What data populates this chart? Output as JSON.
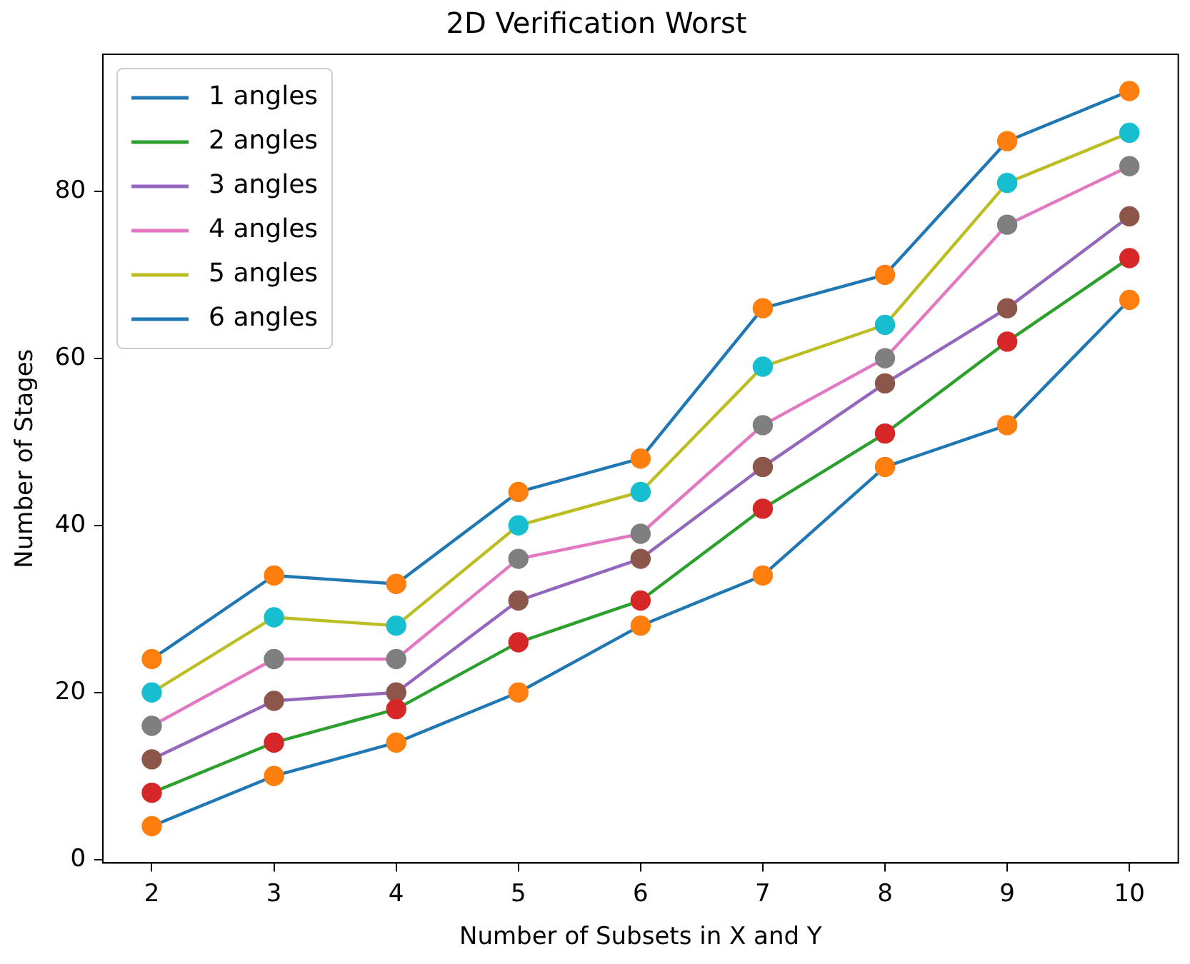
{
  "chart_data": {
    "type": "line",
    "title": "2D Verification Worst",
    "xlabel": "Number of Subsets in X and Y",
    "ylabel": "Number of Stages",
    "x": [
      2,
      3,
      4,
      5,
      6,
      7,
      8,
      9,
      10
    ],
    "xlim": [
      1.6,
      10.4
    ],
    "xticks": [
      2,
      3,
      4,
      5,
      6,
      7,
      8,
      9,
      10
    ],
    "ylim": [
      -0.4,
      96.4
    ],
    "yticks": [
      0,
      20,
      40,
      60,
      80
    ],
    "grid": false,
    "legend": "top left",
    "marker": "circle",
    "line_style": "solid",
    "series": [
      {
        "name": "1 angles",
        "color": "#1f77b4",
        "colors": [
          "#ff7f0e",
          "#ff7f0e",
          "#ff7f0e",
          "#ff7f0e",
          "#ff7f0e",
          "#ff7f0e",
          "#ff7f0e",
          "#ff7f0e",
          "#ff7f0e"
        ],
        "values": [
          4,
          10,
          14,
          20,
          28,
          34,
          47,
          52,
          67
        ]
      },
      {
        "name": "2 angles",
        "color": "#2ca02c",
        "colors": [
          "#d62728",
          "#d62728",
          "#d62728",
          "#d62728",
          "#d62728",
          "#d62728",
          "#d62728",
          "#d62728",
          "#d62728"
        ],
        "values": [
          8,
          14,
          18,
          26,
          31,
          42,
          51,
          62,
          72
        ]
      },
      {
        "name": "3 angles",
        "color": "#9467bd",
        "colors": [
          "#8c564b",
          "#8c564b",
          "#8c564b",
          "#8c564b",
          "#8c564b",
          "#8c564b",
          "#8c564b",
          "#8c564b",
          "#8c564b"
        ],
        "values": [
          12,
          19,
          20,
          31,
          36,
          47,
          57,
          66,
          77
        ]
      },
      {
        "name": "4 angles",
        "color": "#e377c2",
        "colors": [
          "#7f7f7f",
          "#7f7f7f",
          "#7f7f7f",
          "#7f7f7f",
          "#7f7f7f",
          "#7f7f7f",
          "#7f7f7f",
          "#7f7f7f",
          "#7f7f7f"
        ],
        "values": [
          16,
          24,
          24,
          36,
          39,
          52,
          60,
          76,
          83
        ]
      },
      {
        "name": "5 angles",
        "color": "#bcbd22",
        "colors": [
          "#17becf",
          "#17becf",
          "#17becf",
          "#17becf",
          "#17becf",
          "#17becf",
          "#17becf",
          "#17becf",
          "#17becf"
        ],
        "values": [
          20,
          29,
          28,
          40,
          44,
          59,
          64,
          81,
          87
        ]
      },
      {
        "name": "6 angles",
        "color": "#1f77b4",
        "colors": [
          "#ff7f0e",
          "#ff7f0e",
          "#ff7f0e",
          "#ff7f0e",
          "#ff7f0e",
          "#ff7f0e",
          "#ff7f0e",
          "#ff7f0e",
          "#ff7f0e"
        ],
        "values": [
          24,
          34,
          33,
          44,
          48,
          66,
          70,
          86,
          92
        ]
      }
    ]
  }
}
